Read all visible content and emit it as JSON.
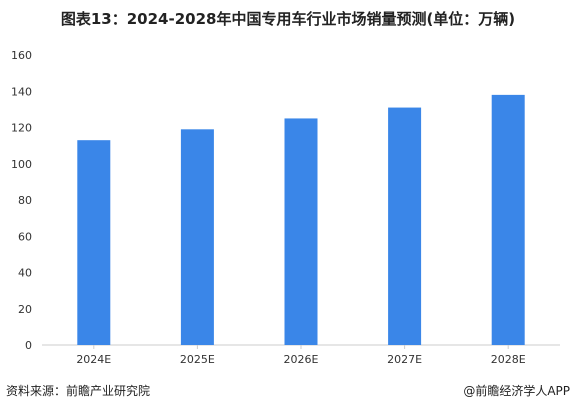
{
  "chart_data": {
    "type": "bar",
    "title": "图表13：2024-2028年中国专用车行业市场销量预测(单位：万辆)",
    "categories": [
      "2024E",
      "2025E",
      "2026E",
      "2027E",
      "2028E"
    ],
    "values": [
      113,
      119,
      125,
      131,
      138
    ],
    "ylim": [
      0,
      160
    ],
    "yticks": [
      0,
      20,
      40,
      60,
      80,
      100,
      120,
      140,
      160
    ],
    "grid": false,
    "legend": "none",
    "bar_color": "#3A86E8"
  },
  "footer": {
    "source": "资料来源：前瞻产业研究院",
    "credit": "@前瞻经济学人APP"
  }
}
